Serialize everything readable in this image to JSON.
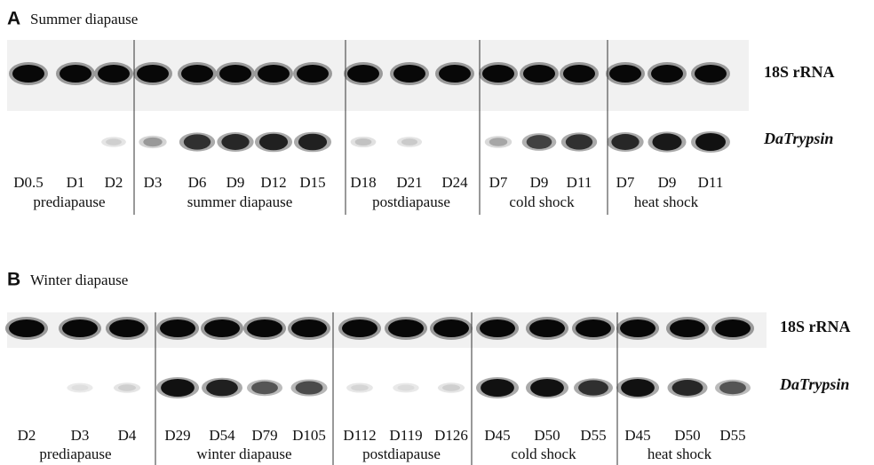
{
  "panels": [
    {
      "letter": "A",
      "title": "Summer diapause",
      "lanes": [
        "D0.5",
        "D1",
        "D2",
        "D3",
        "D6",
        "D9",
        "D12",
        "D15",
        "D18",
        "D21",
        "D24",
        "D7",
        "D9",
        "D11",
        "D7",
        "D9",
        "D11"
      ],
      "groups": [
        "prediapause",
        "summer diapause",
        "postdiapause",
        "cold shock",
        "heat shock"
      ],
      "bands": [
        "18S rRNA",
        "DaTrypsin"
      ]
    },
    {
      "letter": "B",
      "title": "Winter diapause",
      "lanes": [
        "D2",
        "D3",
        "D4",
        "D29",
        "D54",
        "D79",
        "D105",
        "D112",
        "D119",
        "D126",
        "D45",
        "D50",
        "D55",
        "D45",
        "D50",
        "D55"
      ],
      "groups": [
        "prediapause",
        "winter diapause",
        "postdiapause",
        "cold shock",
        "heat shock"
      ],
      "bands": [
        "18S rRNA",
        "DaTrypsin"
      ]
    }
  ]
}
